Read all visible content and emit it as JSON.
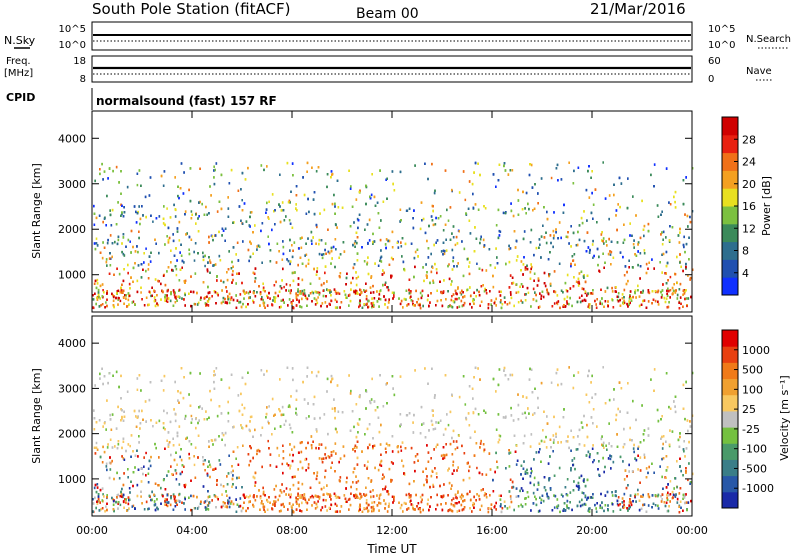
{
  "header": {
    "station": "South Pole Station (fitACF)",
    "beam": "Beam 00",
    "date": "21/Mar/2016"
  },
  "status_panels": {
    "nsky_label": "N.Sky",
    "nsky_ticks": [
      "10^5",
      "10^0"
    ],
    "nsearch_label": "N.Search",
    "nsearch_ticks": [
      "10^5",
      "10^0"
    ],
    "freq_label": "Freq.",
    "freq_unit": "[MHz]",
    "freq_ticks": [
      "18",
      "8"
    ],
    "nave_label": "Nave",
    "nave_ticks": [
      "60",
      "0"
    ],
    "cpid_label": "CPID",
    "cpid_text": "normalsound (fast) 157 RF"
  },
  "chart_data": [
    {
      "type": "heatmap",
      "name": "power-panel",
      "ylabel": "Slant Range [km]",
      "ylim": [
        180,
        4600
      ],
      "y_ticks": [
        1000,
        2000,
        3000,
        4000
      ],
      "xlim": [
        0,
        24
      ],
      "x_ticks": [
        0,
        4,
        8,
        12,
        16,
        20,
        24
      ],
      "colorbar": {
        "label": "Power [dB]",
        "range": [
          0,
          32
        ],
        "ticks": [
          "4",
          "8",
          "12",
          "16",
          "20",
          "24",
          "28"
        ],
        "colors": [
          "#1030ff",
          "#2050b0",
          "#2e6e8e",
          "#3b8a5a",
          "#7cc040",
          "#e8e020",
          "#f4a020",
          "#f07018",
          "#e82010",
          "#d00000"
        ]
      }
    },
    {
      "type": "heatmap",
      "name": "velocity-panel",
      "ylabel": "Slant Range [km]",
      "ylim": [
        180,
        4600
      ],
      "y_ticks": [
        1000,
        2000,
        3000,
        4000
      ],
      "xlim": [
        0,
        24
      ],
      "x_ticks": [
        0,
        4,
        8,
        12,
        16,
        20,
        24
      ],
      "x_tick_labels": [
        "00:00",
        "04:00",
        "08:00",
        "12:00",
        "16:00",
        "20:00",
        "00:00"
      ],
      "xlabel": "Time UT",
      "colorbar": {
        "label": "Velocity [m s⁻¹]",
        "ticks": [
          "1000",
          "500",
          "100",
          "25",
          "-25",
          "-100",
          "-500",
          "-1000"
        ],
        "colors": [
          "#1a2aa8",
          "#2858a8",
          "#3a7e88",
          "#4a9a6a",
          "#74c040",
          "#c0c0c0",
          "#f8c860",
          "#f0a030",
          "#f07a18",
          "#e84010",
          "#e00000"
        ]
      }
    }
  ]
}
